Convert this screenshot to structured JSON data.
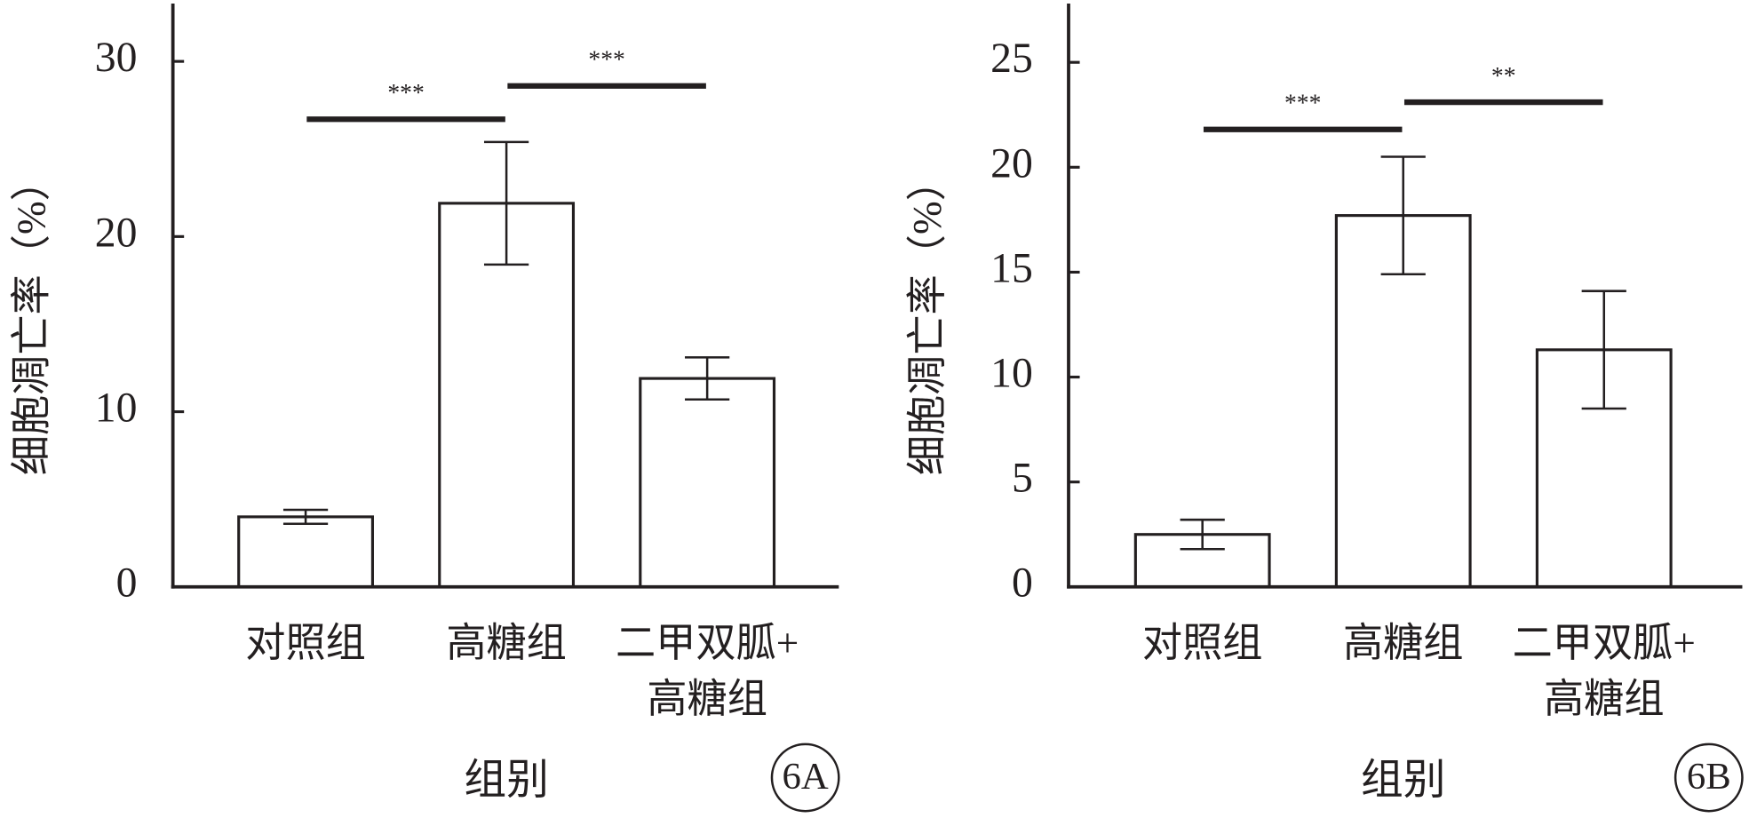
{
  "chart_data": [
    {
      "type": "bar",
      "panel": "6A",
      "y_label": "细胞凋亡率（%）",
      "x_label": "组别",
      "categories": [
        "对照组",
        "高糖组",
        [
          "二甲双胍+",
          "高糖组"
        ]
      ],
      "values": [
        4.0,
        21.9,
        11.9
      ],
      "errors": [
        0.4,
        3.5,
        1.2
      ],
      "color": "#ffffff",
      "ylim": [
        0,
        33.3
      ],
      "yticks": [
        0,
        10,
        20,
        30
      ],
      "annotations": [
        {
          "text": "***",
          "y": 26.7
        },
        {
          "text": "***",
          "y": 28.6
        }
      ]
    },
    {
      "type": "bar",
      "panel": "6B",
      "y_label": "细胞凋亡率（%）",
      "x_label": "组别",
      "categories": [
        "对照组",
        "高糖组",
        [
          "二甲双胍+",
          "高糖组"
        ]
      ],
      "values": [
        2.5,
        17.7,
        11.3
      ],
      "errors": [
        0.7,
        2.8,
        2.8
      ],
      "color": "#ffffff",
      "ylim": [
        0,
        27.8
      ],
      "yticks": [
        0,
        5,
        10,
        15,
        20,
        25
      ],
      "annotations": [
        {
          "text": "***",
          "y": 21.8
        },
        {
          "text": "**",
          "y": 23.1
        }
      ]
    }
  ]
}
